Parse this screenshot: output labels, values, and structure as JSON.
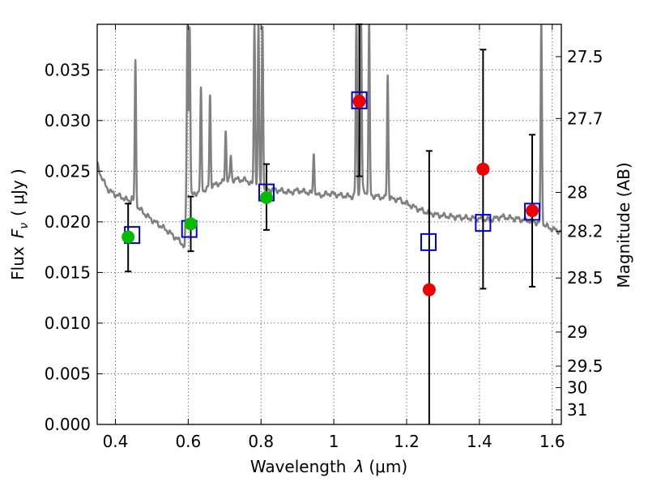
{
  "chart_data": {
    "type": "scatter",
    "xlabel_text": "Wavelength",
    "xlabel_sym": "λ",
    "xlabel_unit": "(μm)",
    "ylabel_text": "Flux",
    "ylabel_sym": "F",
    "ylabel_sub": "ν",
    "ylabel_unit": "( μJy )",
    "y2label": "Magnitude (AB)",
    "xlim": [
      0.35,
      1.625
    ],
    "ylim": [
      0.0,
      0.0395
    ],
    "grid": true,
    "xticks": [
      0.4,
      0.6,
      0.8,
      1.0,
      1.2,
      1.4,
      1.6
    ],
    "xtick_labels": [
      "0.4",
      "0.6",
      "0.8",
      "1",
      "1.2",
      "1.4",
      "1.6"
    ],
    "yticks": [
      0.0,
      0.005,
      0.01,
      0.015,
      0.02,
      0.025,
      0.03,
      0.035
    ],
    "ytick_labels": [
      "0.000",
      "0.005",
      "0.010",
      "0.015",
      "0.020",
      "0.025",
      "0.030",
      "0.035"
    ],
    "mag_ticks": [
      {
        "mag": 27.5,
        "label": "27.5"
      },
      {
        "mag": 27.7,
        "label": "27.7"
      },
      {
        "mag": 28.0,
        "label": "28"
      },
      {
        "mag": 28.2,
        "label": "28.2"
      },
      {
        "mag": 28.5,
        "label": "28.5"
      },
      {
        "mag": 29.0,
        "label": "29"
      },
      {
        "mag": 29.5,
        "label": "29.5"
      },
      {
        "mag": 30.0,
        "label": "30"
      },
      {
        "mag": 31.0,
        "label": "31"
      }
    ],
    "model_spectrum": {
      "color": "#808080",
      "continuum": [
        [
          0.35,
          0.0257
        ],
        [
          0.36,
          0.0246
        ],
        [
          0.37,
          0.0238
        ],
        [
          0.38,
          0.0232
        ],
        [
          0.39,
          0.0229
        ],
        [
          0.4,
          0.0227
        ],
        [
          0.42,
          0.0224
        ],
        [
          0.44,
          0.022
        ],
        [
          0.445,
          0.0225
        ],
        [
          0.45,
          0.0219
        ],
        [
          0.46,
          0.0215
        ],
        [
          0.48,
          0.0208
        ],
        [
          0.5,
          0.0202
        ],
        [
          0.52,
          0.0197
        ],
        [
          0.54,
          0.0192
        ],
        [
          0.56,
          0.0186
        ],
        [
          0.58,
          0.018
        ],
        [
          0.59,
          0.0175
        ],
        [
          0.595,
          0.022
        ],
        [
          0.6,
          0.0223
        ],
        [
          0.61,
          0.0226
        ],
        [
          0.63,
          0.023
        ],
        [
          0.65,
          0.0232
        ],
        [
          0.67,
          0.0236
        ],
        [
          0.7,
          0.024
        ],
        [
          0.73,
          0.0242
        ],
        [
          0.76,
          0.0241
        ],
        [
          0.78,
          0.0236
        ],
        [
          0.8,
          0.0233
        ],
        [
          0.82,
          0.0232
        ],
        [
          0.85,
          0.0231
        ],
        [
          0.88,
          0.0229
        ],
        [
          0.9,
          0.0231
        ],
        [
          0.93,
          0.0229
        ],
        [
          0.96,
          0.0226
        ],
        [
          0.99,
          0.0228
        ],
        [
          1.02,
          0.0226
        ],
        [
          1.05,
          0.0225
        ],
        [
          1.08,
          0.0231
        ],
        [
          1.1,
          0.0226
        ],
        [
          1.12,
          0.0225
        ],
        [
          1.15,
          0.0223
        ],
        [
          1.18,
          0.0222
        ],
        [
          1.2,
          0.0218
        ],
        [
          1.23,
          0.0213
        ],
        [
          1.25,
          0.021
        ],
        [
          1.28,
          0.0207
        ],
        [
          1.3,
          0.0206
        ],
        [
          1.33,
          0.0205
        ],
        [
          1.36,
          0.0204
        ],
        [
          1.4,
          0.0203
        ],
        [
          1.43,
          0.0202
        ],
        [
          1.46,
          0.0205
        ],
        [
          1.5,
          0.0203
        ],
        [
          1.54,
          0.0201
        ],
        [
          1.57,
          0.0198
        ],
        [
          1.6,
          0.0193
        ],
        [
          1.625,
          0.019
        ]
      ],
      "lines": [
        {
          "x": 0.455,
          "peak": 0.0358
        },
        {
          "x": 0.598,
          "peak": 0.0395
        },
        {
          "x": 0.604,
          "peak": 0.0395
        },
        {
          "x": 0.635,
          "peak": 0.033
        },
        {
          "x": 0.66,
          "peak": 0.0325
        },
        {
          "x": 0.703,
          "peak": 0.029
        },
        {
          "x": 0.717,
          "peak": 0.0265
        },
        {
          "x": 0.782,
          "peak": 0.0395
        },
        {
          "x": 0.793,
          "peak": 0.0395
        },
        {
          "x": 0.804,
          "peak": 0.0395
        },
        {
          "x": 0.945,
          "peak": 0.0268
        },
        {
          "x": 1.062,
          "peak": 0.0395
        },
        {
          "x": 1.075,
          "peak": 0.0395
        },
        {
          "x": 1.097,
          "peak": 0.0395
        },
        {
          "x": 1.148,
          "peak": 0.0345
        },
        {
          "x": 1.57,
          "peak": 0.0395
        }
      ]
    },
    "model_boxes": {
      "color": "#0000cc",
      "points": [
        {
          "x": 0.446,
          "y": 0.0187
        },
        {
          "x": 0.603,
          "y": 0.0193
        },
        {
          "x": 0.815,
          "y": 0.0229
        },
        {
          "x": 1.07,
          "y": 0.032
        },
        {
          "x": 1.26,
          "y": 0.018
        },
        {
          "x": 1.41,
          "y": 0.0199
        },
        {
          "x": 1.545,
          "y": 0.021
        }
      ]
    },
    "detections": {
      "color": "#00bb00",
      "points": [
        {
          "x": 0.435,
          "y": 0.0185,
          "lo": 0.0151,
          "hi": 0.0218
        },
        {
          "x": 0.607,
          "y": 0.0198,
          "lo": 0.0171,
          "hi": 0.0225
        },
        {
          "x": 0.815,
          "y": 0.0224,
          "lo": 0.0192,
          "hi": 0.0257
        }
      ]
    },
    "nir_points": {
      "color": "#ee0000",
      "points": [
        {
          "x": 1.07,
          "y": 0.0319,
          "lo": 0.0245,
          "hi": 0.0395
        },
        {
          "x": 1.262,
          "y": 0.0133,
          "lo": 0.0,
          "hi": 0.027
        },
        {
          "x": 1.41,
          "y": 0.0252,
          "lo": 0.0134,
          "hi": 0.037
        },
        {
          "x": 1.545,
          "y": 0.0211,
          "lo": 0.0136,
          "hi": 0.0286
        }
      ]
    }
  }
}
